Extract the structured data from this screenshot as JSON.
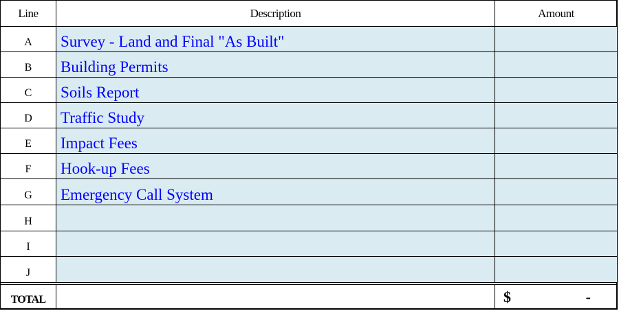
{
  "header": {
    "line": "Line",
    "description": "Description",
    "amount": "Amount"
  },
  "rows": [
    {
      "line": "A",
      "description": "Survey - Land and Final \"As Built\"",
      "amount": ""
    },
    {
      "line": "B",
      "description": "Building Permits",
      "amount": ""
    },
    {
      "line": "C",
      "description": "Soils Report",
      "amount": ""
    },
    {
      "line": "D",
      "description": "Traffic Study",
      "amount": ""
    },
    {
      "line": "E",
      "description": "Impact Fees",
      "amount": ""
    },
    {
      "line": "F",
      "description": "Hook-up Fees",
      "amount": ""
    },
    {
      "line": "G",
      "description": "Emergency Call System",
      "amount": ""
    },
    {
      "line": "H",
      "description": "",
      "amount": ""
    },
    {
      "line": "I",
      "description": "",
      "amount": ""
    },
    {
      "line": "J",
      "description": "",
      "amount": ""
    }
  ],
  "total": {
    "label": "TOTAL",
    "currency": "$",
    "value": "-"
  },
  "colors": {
    "input_fill": "#daebf1",
    "input_text": "#0000ff"
  }
}
